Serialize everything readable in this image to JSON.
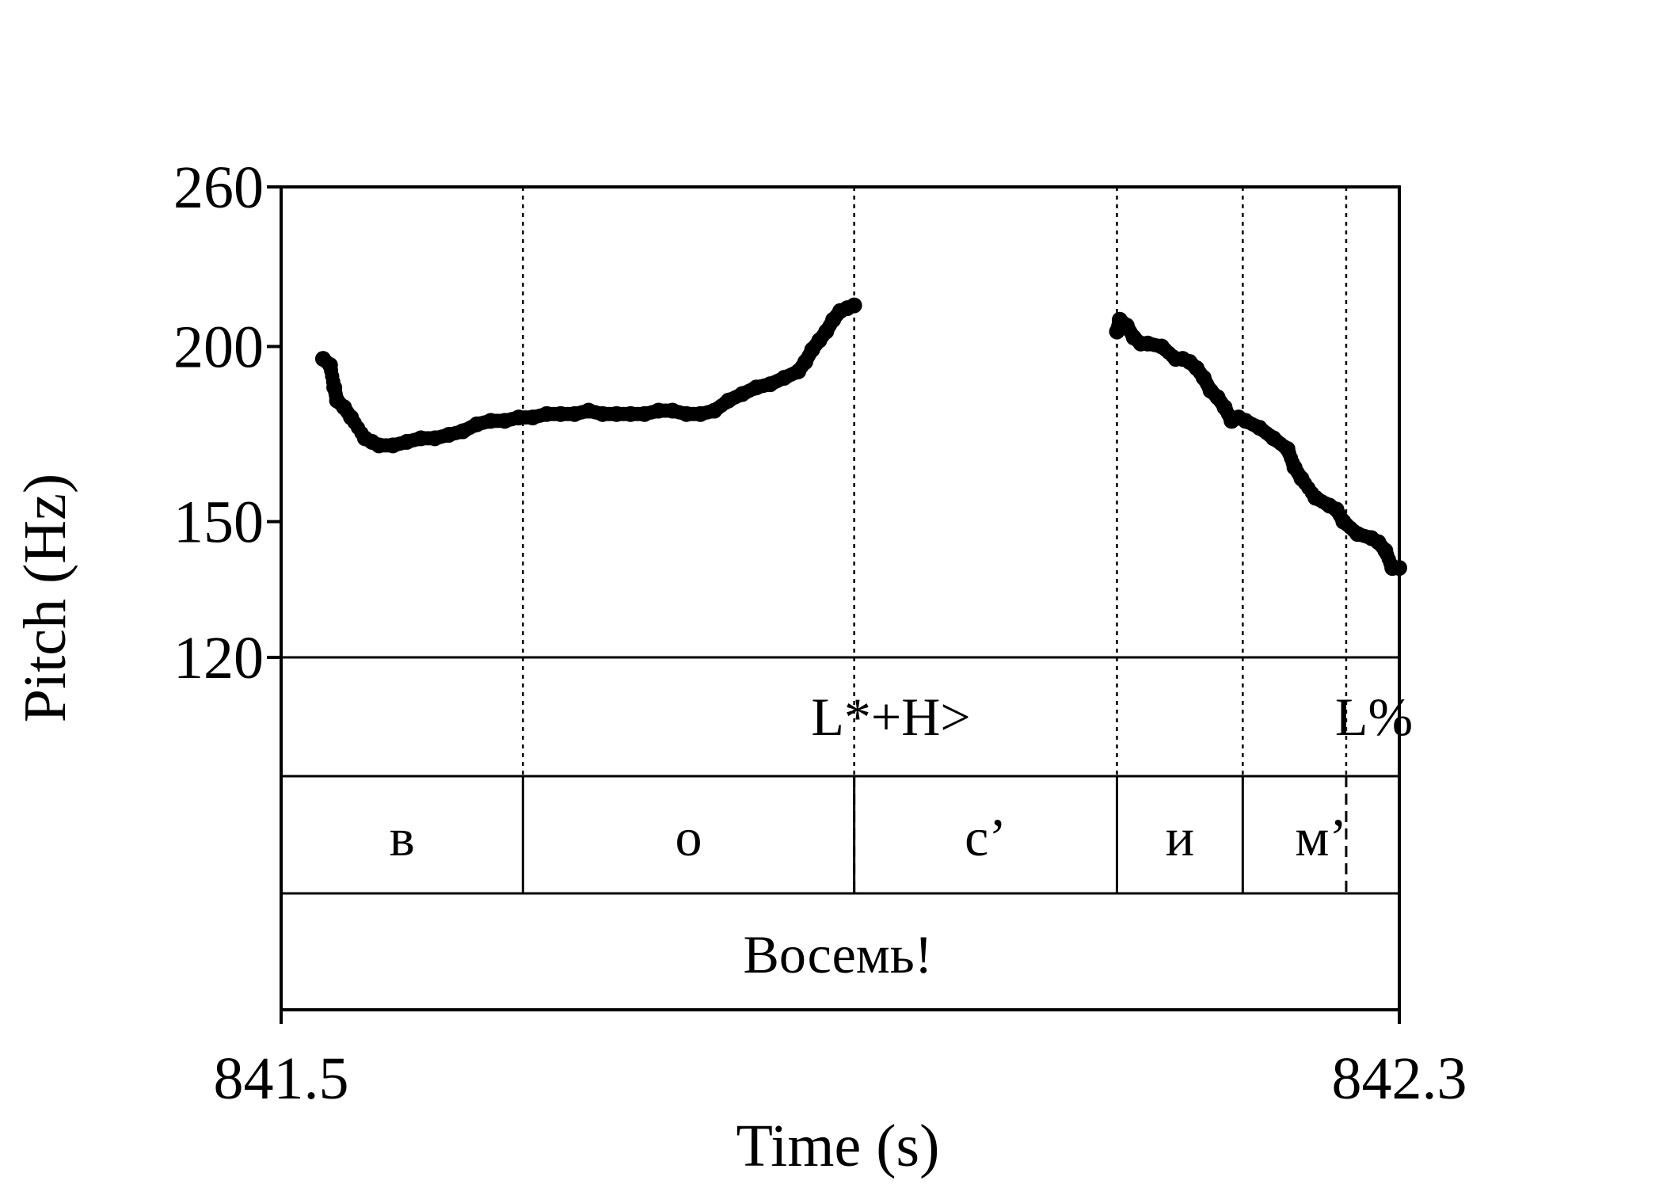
{
  "chart_data": {
    "type": "scatter",
    "xlabel": "Time (s)",
    "ylabel": "Pitch (Hz)",
    "xlim": [
      841.5,
      842.3
    ],
    "ylim": [
      120,
      260
    ],
    "y_scale": "log",
    "x_ticks": [
      "841.5",
      "842.3"
    ],
    "y_ticks": [
      120,
      150,
      200,
      260
    ],
    "y_tick_labels": [
      "120",
      "150",
      "200",
      "260"
    ],
    "grid": false,
    "boundaries": [
      841.673,
      841.91,
      842.098,
      842.188,
      842.262
    ],
    "tones": [
      {
        "label": "L*+H>",
        "time": 841.91
      },
      {
        "label": "L%",
        "time": 842.262
      }
    ],
    "segments": [
      {
        "label": "в",
        "start": 841.5,
        "end": 841.673
      },
      {
        "label": "о",
        "start": 841.673,
        "end": 841.91
      },
      {
        "label": "с’",
        "start": 841.91,
        "end": 842.098
      },
      {
        "label": "и",
        "start": 842.098,
        "end": 842.188
      },
      {
        "label": "м’",
        "start": 842.188,
        "end": 842.3
      }
    ],
    "words": [
      {
        "label": "Восемь!",
        "start": 841.5,
        "end": 842.3
      }
    ],
    "series": [
      {
        "x": [
          841.53,
          841.535,
          841.538,
          841.54,
          841.545,
          841.55,
          841.56,
          841.565,
          841.57,
          841.58,
          841.59,
          841.6,
          841.61,
          841.62,
          841.63,
          841.64,
          841.65,
          841.66,
          841.67,
          841.68,
          841.69,
          841.7,
          841.71,
          841.72,
          841.73,
          841.74,
          841.75,
          841.76,
          841.77,
          841.78,
          841.79,
          841.8,
          841.81,
          841.82,
          841.83,
          841.84,
          841.85,
          841.86,
          841.87,
          841.875,
          841.88,
          841.885,
          841.89,
          841.895,
          841.9,
          841.905,
          841.91
        ],
        "y": [
          196,
          194,
          187,
          183,
          181,
          178,
          172,
          171,
          170,
          170,
          171,
          172,
          172,
          173,
          174,
          176,
          177,
          177,
          178,
          178,
          179,
          179,
          179,
          180,
          179,
          179,
          179,
          179,
          180,
          180,
          179,
          179,
          180,
          183,
          185,
          187,
          188,
          190,
          192,
          195,
          199,
          202,
          205,
          209,
          212,
          213,
          214
        ]
      },
      {
        "x": [
          842.098,
          842.1,
          842.105,
          842.11,
          842.115,
          842.12,
          842.13,
          842.14,
          842.145,
          842.15,
          842.155,
          842.16,
          842.165,
          842.17,
          842.175,
          842.18,
          842.185,
          842.19,
          842.2,
          842.21,
          842.22,
          842.225,
          842.23,
          842.24,
          842.25,
          842.255,
          842.26,
          842.27,
          842.28,
          842.285,
          842.29,
          842.295,
          842.3
        ],
        "y": [
          205,
          209,
          207,
          203,
          201,
          201,
          200,
          196,
          196,
          195,
          193,
          190,
          186,
          184,
          181,
          177,
          178,
          177,
          175,
          172,
          169,
          164,
          161,
          156,
          154,
          153,
          150,
          147,
          146,
          145,
          143,
          139,
          139
        ]
      }
    ]
  }
}
